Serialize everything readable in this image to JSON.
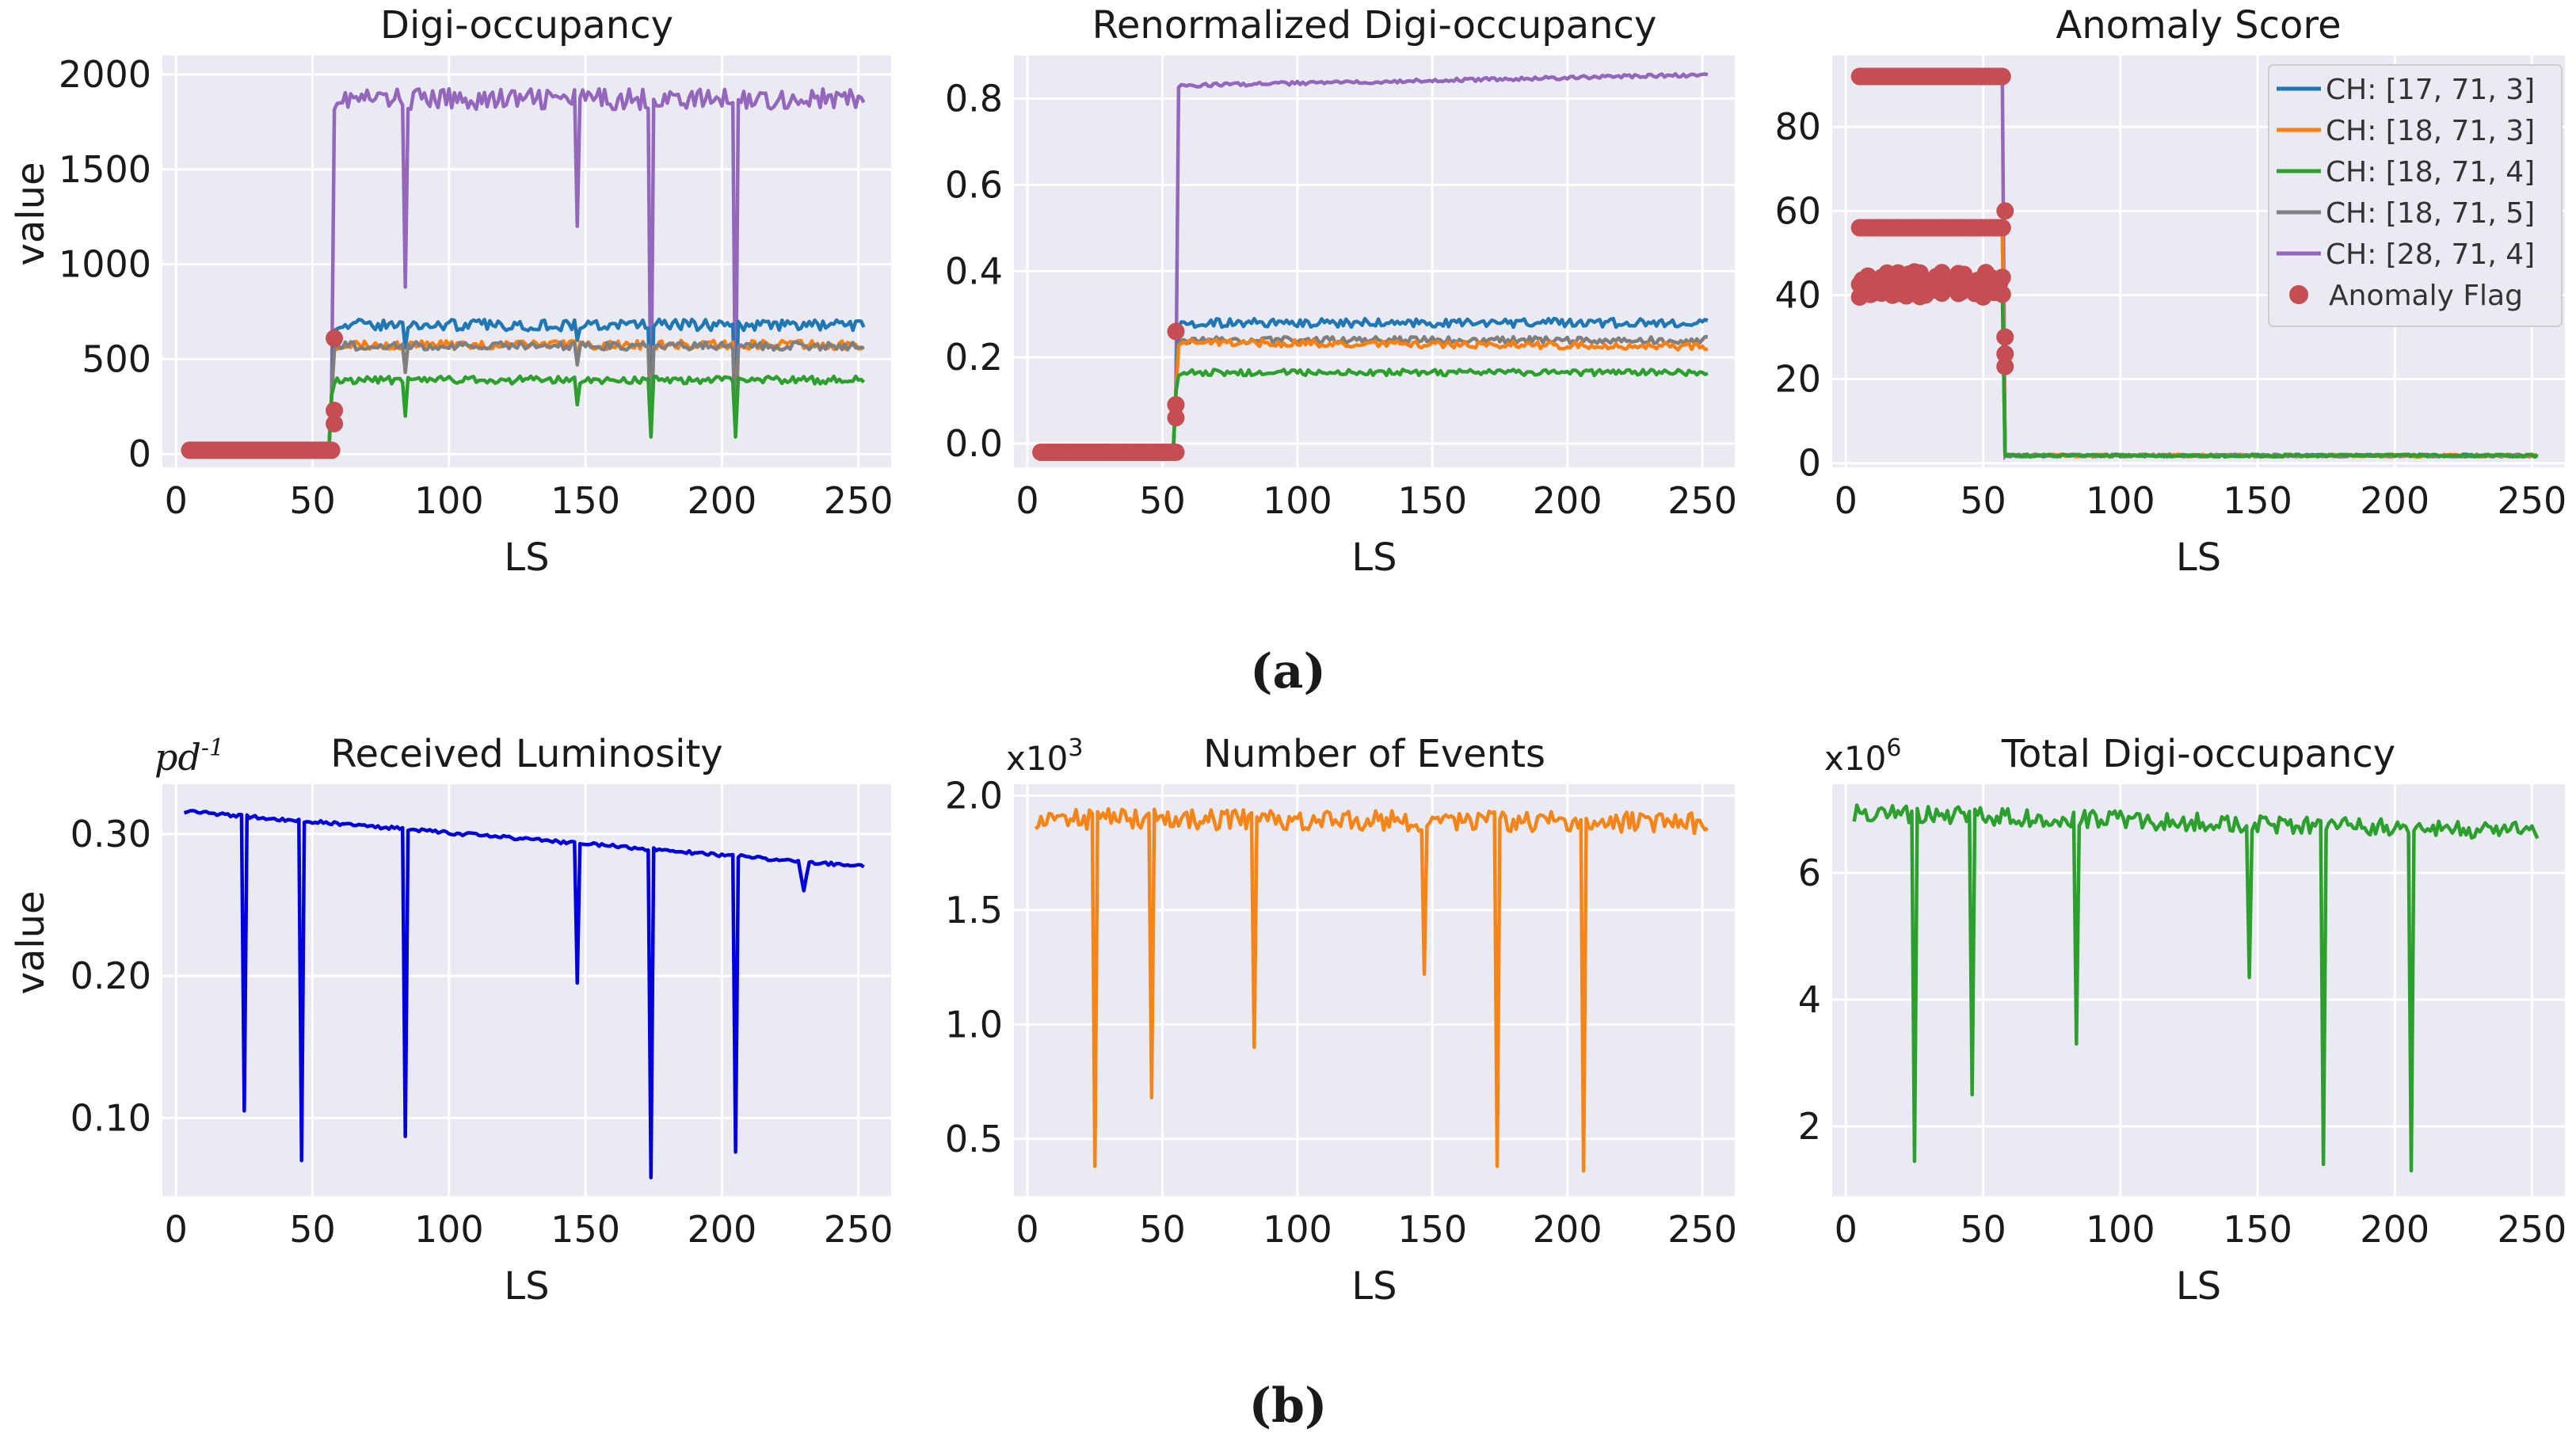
{
  "captions": {
    "a": "(a)",
    "b": "(b)"
  },
  "colors": {
    "ch_17_71_3": "#1f77b4",
    "ch_18_71_3": "#ff7f0e",
    "ch_18_71_4": "#2ca02c",
    "ch_18_71_5": "#7f7f7f",
    "ch_28_71_4": "#9467bd",
    "anomaly": "#c44e52",
    "luminosity": "#0000dd",
    "events": "#f58518",
    "total": "#2ca02c"
  },
  "chart_data": [
    {
      "id": "digi",
      "type": "line",
      "title": "Digi-occupancy",
      "xlabel": "LS",
      "ylabel": "value",
      "xlim": [
        -5,
        262
      ],
      "ylim": [
        -70,
        2100
      ],
      "xticks": [
        0,
        50,
        100,
        150,
        200,
        250
      ],
      "yticks": [
        0,
        500,
        1000,
        1500,
        2000
      ],
      "grid": true,
      "series": [
        {
          "name": "CH: [28, 71, 4]",
          "color_key": "ch_28_71_4",
          "pre": 20,
          "step_at": 58,
          "jump": 600,
          "base": 1870,
          "noise": 55,
          "dips": [
            [
              84,
              880
            ],
            [
              147,
              1200
            ],
            [
              174,
              100
            ],
            [
              205,
              100
            ]
          ]
        },
        {
          "name": "CH: [17, 71, 3]",
          "color_key": "ch_17_71_3",
          "pre": 20,
          "step_at": 58,
          "jump": 600,
          "base": 680,
          "noise": 30,
          "dips": [
            [
              84,
              560
            ],
            [
              147,
              600
            ],
            [
              174,
              120
            ],
            [
              205,
              150
            ]
          ]
        },
        {
          "name": "CH: [18, 71, 3]",
          "color_key": "ch_18_71_3",
          "pre": 20,
          "step_at": 58,
          "jump": 600,
          "base": 575,
          "noise": 24,
          "dips": [
            [
              84,
              450
            ],
            [
              147,
              480
            ],
            [
              174,
              120
            ],
            [
              205,
              150
            ]
          ]
        },
        {
          "name": "CH: [18, 71, 5]",
          "color_key": "ch_18_71_5",
          "pre": 20,
          "step_at": 58,
          "jump": 600,
          "base": 570,
          "noise": 22,
          "dips": [
            [
              84,
              430
            ],
            [
              147,
              470
            ],
            [
              174,
              100
            ],
            [
              205,
              120
            ]
          ]
        },
        {
          "name": "CH: [18, 71, 4]",
          "color_key": "ch_18_71_4",
          "pre": 20,
          "step_at": 58,
          "jump": 600,
          "base": 390,
          "noise": 20,
          "dips": [
            [
              84,
              200
            ],
            [
              147,
              260
            ],
            [
              174,
              90
            ],
            [
              205,
              90
            ]
          ]
        }
      ],
      "anomaly_flags": {
        "x_from": 5,
        "x_to": 57,
        "y": 20,
        "extra": [
          [
            58,
            160
          ],
          [
            58,
            230
          ],
          [
            58,
            610
          ]
        ]
      }
    },
    {
      "id": "renorm",
      "type": "line",
      "title": "Renormalized Digi-occupancy",
      "xlabel": "LS",
      "ylabel": "",
      "xlim": [
        -5,
        262
      ],
      "ylim": [
        -0.055,
        0.9
      ],
      "xticks": [
        0,
        50,
        100,
        150,
        200,
        250
      ],
      "yticks": [
        0.0,
        0.2,
        0.4,
        0.6,
        0.8
      ],
      "ytick_labels": [
        "0.0",
        "0.2",
        "0.4",
        "0.6",
        "0.8"
      ],
      "grid": true,
      "series": [
        {
          "name": "CH: [28, 71, 4]",
          "color_key": "ch_28_71_4",
          "pre": -0.02,
          "step_at": 56,
          "jump": 0.26,
          "base": 0.83,
          "trend": 0.025,
          "noise": 0.004,
          "dips": []
        },
        {
          "name": "CH: [17, 71, 3]",
          "color_key": "ch_17_71_3",
          "pre": -0.02,
          "step_at": 56,
          "jump": 0.26,
          "base": 0.28,
          "trend": 0,
          "noise": 0.01,
          "dips": []
        },
        {
          "name": "CH: [18, 71, 5]",
          "color_key": "ch_18_71_5",
          "pre": -0.02,
          "step_at": 56,
          "jump": 0.26,
          "base": 0.24,
          "trend": 0,
          "noise": 0.008,
          "dips": []
        },
        {
          "name": "CH: [18, 71, 3]",
          "color_key": "ch_18_71_3",
          "pre": -0.02,
          "step_at": 56,
          "jump": 0.26,
          "base": 0.235,
          "trend": -0.01,
          "noise": 0.008,
          "dips": []
        },
        {
          "name": "CH: [18, 71, 4]",
          "color_key": "ch_18_71_4",
          "pre": -0.02,
          "step_at": 56,
          "jump": 0.26,
          "base": 0.165,
          "trend": 0,
          "noise": 0.007,
          "dips": []
        }
      ],
      "anomaly_flags": {
        "x_from": 5,
        "x_to": 55,
        "y": -0.02,
        "extra": [
          [
            55,
            0.06
          ],
          [
            55,
            0.09
          ],
          [
            55,
            0.26
          ]
        ]
      }
    },
    {
      "id": "anomaly",
      "type": "line",
      "title": "Anomaly Score",
      "xlabel": "LS",
      "ylabel": "",
      "xlim": [
        -5,
        262
      ],
      "ylim": [
        -1,
        97
      ],
      "xticks": [
        0,
        50,
        100,
        150,
        200,
        250
      ],
      "yticks": [
        0,
        20,
        40,
        60,
        80
      ],
      "grid": true,
      "levels": [
        {
          "color_key": "ch_28_71_4",
          "pre": 92
        },
        {
          "color_key": "ch_17_71_3",
          "pre": 56
        },
        {
          "color_key": "ch_18_71_3",
          "pre": 56.5
        },
        {
          "color_key": "ch_18_71_5",
          "pre": 43
        },
        {
          "color_key": "ch_18_71_4",
          "pre": 41
        }
      ],
      "step_at": 58,
      "post": 1.5,
      "anomaly_flags": {
        "x_from": 5,
        "x_to": 57,
        "levels": [
          92,
          56,
          44,
          41
        ],
        "extra": [
          [
            58,
            60
          ],
          [
            58,
            30
          ],
          [
            58,
            26
          ],
          [
            58,
            23
          ]
        ]
      },
      "legend": {
        "position": "top-right",
        "entries": [
          {
            "label": "CH: [17, 71, 3]",
            "color_key": "ch_17_71_3",
            "kind": "line"
          },
          {
            "label": "CH: [18, 71, 3]",
            "color_key": "ch_18_71_3",
            "kind": "line"
          },
          {
            "label": "CH: [18, 71, 4]",
            "color_key": "ch_18_71_4",
            "kind": "line"
          },
          {
            "label": "CH: [18, 71, 5]",
            "color_key": "ch_18_71_5",
            "kind": "line"
          },
          {
            "label": "CH: [28, 71, 4]",
            "color_key": "ch_28_71_4",
            "kind": "line"
          },
          {
            "label": "Anomaly Flag",
            "color_key": "anomaly",
            "kind": "marker"
          }
        ]
      }
    },
    {
      "id": "lumi",
      "type": "line",
      "title": "Received Luminosity",
      "multiplier": "pd-1",
      "multiplier_base": "pd",
      "multiplier_exp": "-1",
      "xlabel": "LS",
      "ylabel": "value",
      "xlim": [
        -5,
        262
      ],
      "ylim": [
        0.045,
        0.335
      ],
      "xticks": [
        0,
        50,
        100,
        150,
        200,
        250
      ],
      "yticks": [
        0.1,
        0.2,
        0.3
      ],
      "ytick_labels": [
        "0.10",
        "0.20",
        "0.30"
      ],
      "grid": true,
      "series": [
        {
          "name": "luminosity",
          "color_key": "luminosity",
          "start": 0.316,
          "end": 0.277,
          "noise": 0.0012,
          "dips": [
            [
              25,
              0.105
            ],
            [
              46,
              0.07
            ],
            [
              84,
              0.087
            ],
            [
              147,
              0.195
            ],
            [
              174,
              0.058
            ],
            [
              205,
              0.076
            ],
            [
              230,
              0.26
            ]
          ]
        }
      ]
    },
    {
      "id": "events",
      "type": "line",
      "title": "Number of Events",
      "multiplier": "x10^3",
      "multiplier_base": "x10",
      "multiplier_exp": "3",
      "xlabel": "LS",
      "ylabel": "",
      "xlim": [
        -5,
        262
      ],
      "ylim": [
        0.25,
        2.05
      ],
      "xticks": [
        0,
        50,
        100,
        150,
        200,
        250
      ],
      "yticks": [
        0.5,
        1.0,
        1.5,
        2.0
      ],
      "ytick_labels": [
        "0.5",
        "1.0",
        "1.5",
        "2.0"
      ],
      "grid": true,
      "series": [
        {
          "name": "events",
          "color_key": "events",
          "start": 1.9,
          "end": 1.88,
          "noise": 0.045,
          "dips": [
            [
              25,
              0.38
            ],
            [
              46,
              0.68
            ],
            [
              84,
              0.9
            ],
            [
              147,
              1.22
            ],
            [
              174,
              0.38
            ],
            [
              206,
              0.36
            ]
          ]
        }
      ]
    },
    {
      "id": "total",
      "type": "line",
      "title": "Total Digi-occupancy",
      "multiplier": "x10^6",
      "multiplier_base": "x10",
      "multiplier_exp": "6",
      "xlabel": "LS",
      "ylabel": "",
      "xlim": [
        -5,
        262
      ],
      "ylim": [
        0.9,
        7.4
      ],
      "xticks": [
        0,
        50,
        100,
        150,
        200,
        250
      ],
      "yticks": [
        2,
        4,
        6
      ],
      "grid": true,
      "series": [
        {
          "name": "total",
          "color_key": "total",
          "start": 6.95,
          "end": 6.65,
          "noise": 0.14,
          "dips": [
            [
              25,
              1.45
            ],
            [
              46,
              2.5
            ],
            [
              84,
              3.3
            ],
            [
              147,
              4.35
            ],
            [
              174,
              1.4
            ],
            [
              206,
              1.3
            ]
          ]
        }
      ]
    }
  ]
}
